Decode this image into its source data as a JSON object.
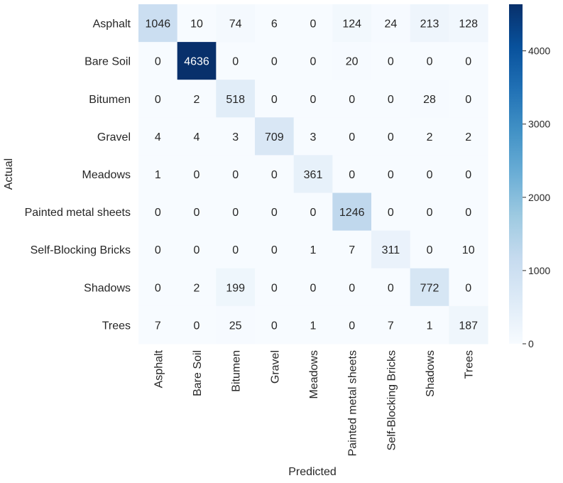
{
  "chart_data": {
    "type": "heatmap",
    "title": "",
    "xlabel": "Predicted",
    "ylabel": "Actual",
    "rows": [
      "Asphalt",
      "Bare Soil",
      "Bitumen",
      "Gravel",
      "Meadows",
      "Painted metal sheets",
      "Self-Blocking Bricks",
      "Shadows",
      "Trees"
    ],
    "columns": [
      "Asphalt",
      "Bare Soil",
      "Bitumen",
      "Gravel",
      "Meadows",
      "Painted metal sheets",
      "Self-Blocking Bricks",
      "Shadows",
      "Trees"
    ],
    "values": [
      [
        1046,
        10,
        74,
        6,
        0,
        124,
        24,
        213,
        128
      ],
      [
        0,
        4636,
        0,
        0,
        0,
        20,
        0,
        0,
        0
      ],
      [
        0,
        2,
        518,
        0,
        0,
        0,
        0,
        28,
        0
      ],
      [
        4,
        4,
        3,
        709,
        3,
        0,
        0,
        2,
        2
      ],
      [
        1,
        0,
        0,
        0,
        361,
        0,
        0,
        0,
        0
      ],
      [
        0,
        0,
        0,
        0,
        0,
        1246,
        0,
        0,
        0
      ],
      [
        0,
        0,
        0,
        0,
        1,
        7,
        311,
        0,
        10
      ],
      [
        0,
        2,
        199,
        0,
        0,
        0,
        0,
        772,
        0
      ],
      [
        7,
        0,
        25,
        0,
        1,
        0,
        7,
        1,
        187
      ]
    ],
    "colorbar": {
      "range": [
        0,
        4636
      ],
      "ticks": [
        0,
        1000,
        2000,
        3000,
        4000
      ],
      "colormap": "Blues",
      "low_color": "#f7fbff",
      "high_color": "#08306b"
    },
    "grid": false,
    "legend": "none"
  }
}
